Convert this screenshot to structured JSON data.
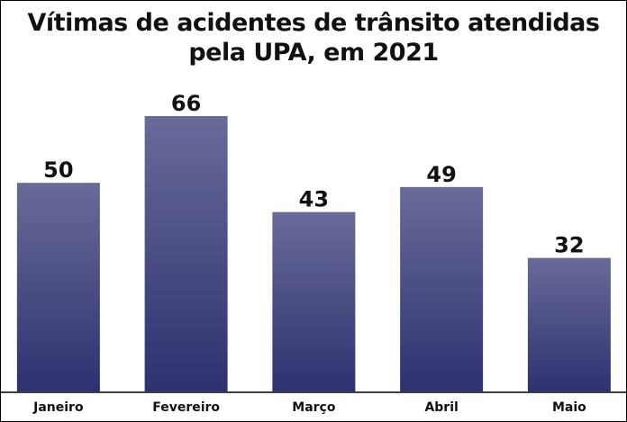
{
  "chart_data": {
    "type": "bar",
    "title": "Vítimas de acidentes de trânsito atendidas pela UPA, em 2021",
    "categories": [
      "Janeiro",
      "Fevereiro",
      "Março",
      "Abril",
      "Maio"
    ],
    "values": [
      50,
      66,
      43,
      49,
      32
    ],
    "color": "#2e3170"
  }
}
